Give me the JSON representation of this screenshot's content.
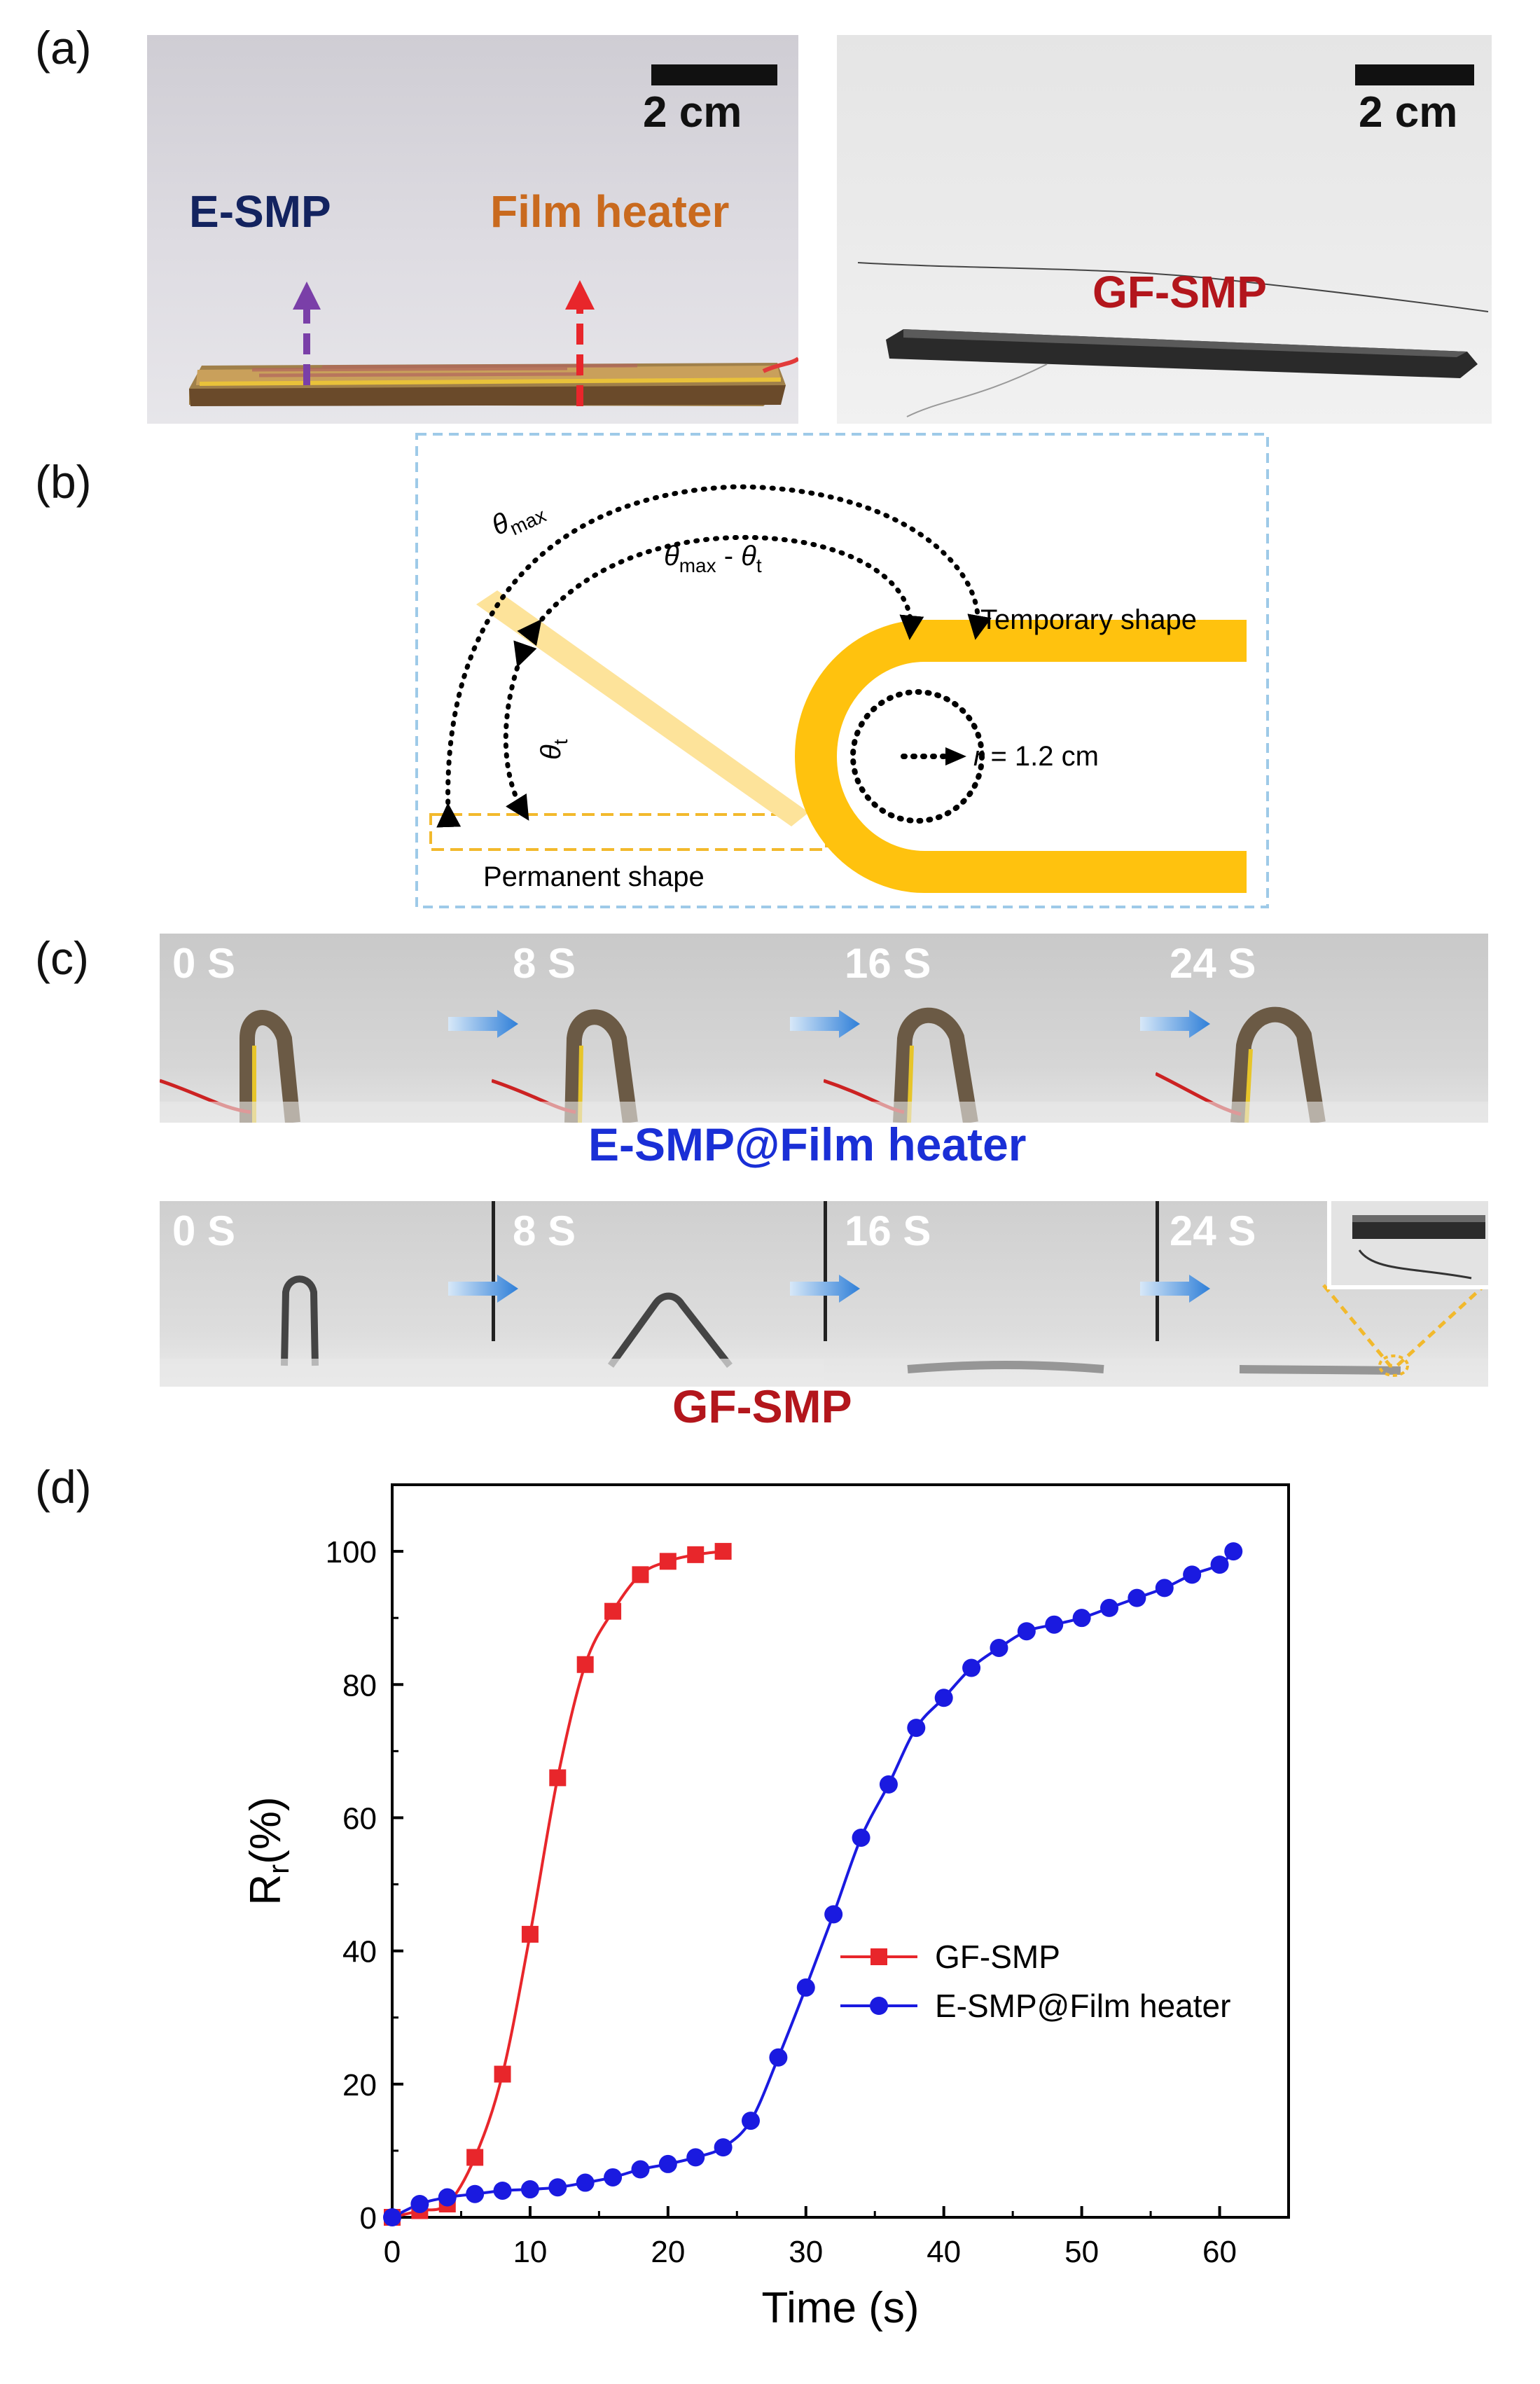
{
  "panels": {
    "a": {
      "label": "(a)",
      "left": {
        "scale": "2 cm",
        "label_esmp": "E-SMP",
        "label_heater": "Film heater",
        "colors": {
          "esmp": "#13235f",
          "heater": "#c96a1e",
          "esmp_arrow": "#7a3fa8",
          "heater_arrow": "#e8262b"
        }
      },
      "right": {
        "scale": "2 cm",
        "label": "GF-SMP",
        "color": "#b3161c"
      }
    },
    "b": {
      "label": "(b)",
      "theta_max": "θ",
      "theta_max_sub": "max",
      "theta_diff_a": "θ",
      "theta_diff_sub1": "max",
      "theta_diff_mid": " - ",
      "theta_diff_b": "θ",
      "theta_diff_sub2": "t",
      "theta_t": "θ",
      "theta_t_sub": "t",
      "temporary": "Temporary  shape",
      "permanent": "Permanent shape",
      "radius_var": "r",
      "radius_val": " = 1.2 cm",
      "colors": {
        "strip": "#ffc20e",
        "strip_light": "#fde39a",
        "frame": "#9ecae8"
      }
    },
    "c": {
      "label": "(c)",
      "row1_times": [
        "0 S",
        "8 S",
        "16 S",
        "24 S"
      ],
      "row1_caption": "E-SMP@Film heater",
      "row2_times": [
        "0 S",
        "8 S",
        "16 S",
        "24 S"
      ],
      "row2_caption": "GF-SMP",
      "colors": {
        "caption1": "#1a2fd6",
        "caption2": "#b3161c",
        "arrow": "#3b8be0"
      }
    },
    "d": {
      "label": "(d)"
    }
  },
  "chart_data": {
    "type": "line",
    "xlabel": "Time (s)",
    "ylabel_main": "R",
    "ylabel_sub": "r",
    "ylabel_tail": "(%)",
    "xlim": [
      0,
      65
    ],
    "ylim": [
      0,
      110
    ],
    "xticks": [
      0,
      10,
      20,
      30,
      40,
      50,
      60
    ],
    "yticks": [
      0,
      20,
      40,
      60,
      80,
      100
    ],
    "legend_position": "center-right",
    "series": [
      {
        "name": "GF-SMP",
        "color": "#e8262b",
        "marker": "square",
        "x": [
          0,
          2,
          4,
          6,
          8,
          10,
          12,
          14,
          16,
          18,
          20,
          22,
          24
        ],
        "y": [
          0,
          1,
          2,
          9,
          21.5,
          42.5,
          66,
          83,
          91,
          96.5,
          98.5,
          99.5,
          100
        ]
      },
      {
        "name": "E-SMP@Film heater",
        "color": "#1a1ae0",
        "marker": "circle",
        "x": [
          0,
          2,
          4,
          6,
          8,
          10,
          12,
          14,
          16,
          18,
          20,
          22,
          24,
          26,
          28,
          30,
          32,
          34,
          36,
          38,
          40,
          42,
          44,
          46,
          48,
          50,
          52,
          54,
          56,
          58,
          60,
          61
        ],
        "y": [
          0,
          2,
          3,
          3.5,
          4,
          4.2,
          4.5,
          5.2,
          6,
          7.2,
          8,
          9,
          10.5,
          14.5,
          24,
          34.5,
          45.5,
          57,
          65,
          73.5,
          78,
          82.5,
          85.5,
          88,
          89,
          90,
          91.5,
          93,
          94.5,
          96.5,
          98,
          100
        ]
      }
    ]
  }
}
